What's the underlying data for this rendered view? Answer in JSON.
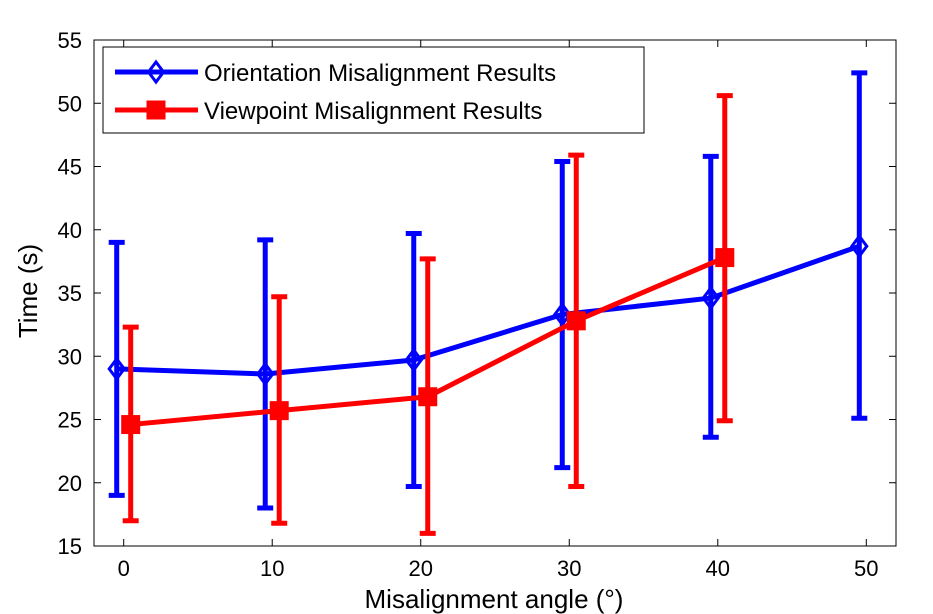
{
  "chart_data": {
    "type": "line",
    "xlabel": "Misalignment angle (°)",
    "ylabel": "Time (s)",
    "xlim": [
      -2,
      52
    ],
    "ylim": [
      15,
      55
    ],
    "xticks": [
      0,
      10,
      20,
      30,
      40,
      50
    ],
    "yticks": [
      15,
      20,
      25,
      30,
      35,
      40,
      45,
      50,
      55
    ],
    "grid": false,
    "legend_position": "top-left",
    "series": [
      {
        "name": "Orientation Misalignment Results",
        "color": "#0000ff",
        "marker": "diamond",
        "x": [
          0,
          10,
          20,
          30,
          40,
          50
        ],
        "y": [
          29.0,
          28.6,
          29.7,
          33.3,
          34.6,
          38.7
        ],
        "err_low": [
          19.0,
          18.0,
          19.7,
          21.2,
          23.6,
          25.1
        ],
        "err_high": [
          39.0,
          39.2,
          39.7,
          45.4,
          45.8,
          52.4
        ]
      },
      {
        "name": "Viewpoint Misalignment Results",
        "color": "#ff0000",
        "marker": "square",
        "x": [
          0,
          10,
          20,
          30,
          40
        ],
        "y": [
          24.6,
          25.7,
          26.8,
          32.8,
          37.8
        ],
        "err_low": [
          17.0,
          16.8,
          16.0,
          19.7,
          24.9
        ],
        "err_high": [
          32.3,
          34.7,
          37.7,
          45.9,
          50.6
        ]
      }
    ]
  }
}
